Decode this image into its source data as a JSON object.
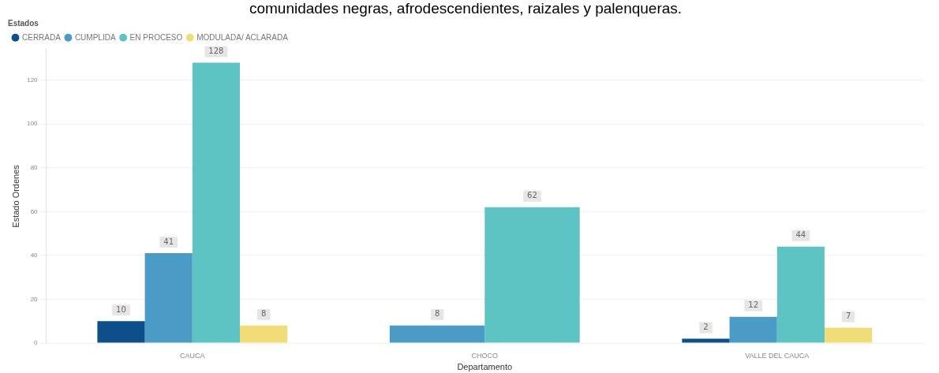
{
  "chart_data": {
    "type": "bar",
    "title": "comunidades negras, afrodescendientes, raizales y palenqueras.",
    "xlabel": "Departamento",
    "ylabel": "Estado Ordenes",
    "legend_title": "Estados",
    "categories": [
      "CAUCA",
      "CHOCO",
      "VALLE DEL CAUCA"
    ],
    "series": [
      {
        "name": "CERRADA",
        "color": "#0d4f8b",
        "values": [
          10,
          null,
          2
        ]
      },
      {
        "name": "CUMPLIDA",
        "color": "#4a9cc7",
        "values": [
          41,
          8,
          12
        ]
      },
      {
        "name": "EN PROCESO",
        "color": "#5ec4c3",
        "values": [
          128,
          62,
          44
        ]
      },
      {
        "name": "MODULADA/ ACLARADA",
        "color": "#f2dc78",
        "values": [
          8,
          null,
          7
        ]
      }
    ],
    "ylim": [
      0,
      134
    ],
    "yticks": [
      0,
      20,
      40,
      60,
      80,
      100,
      120
    ],
    "grid": "y",
    "legend": "top left",
    "data_labels": true
  }
}
